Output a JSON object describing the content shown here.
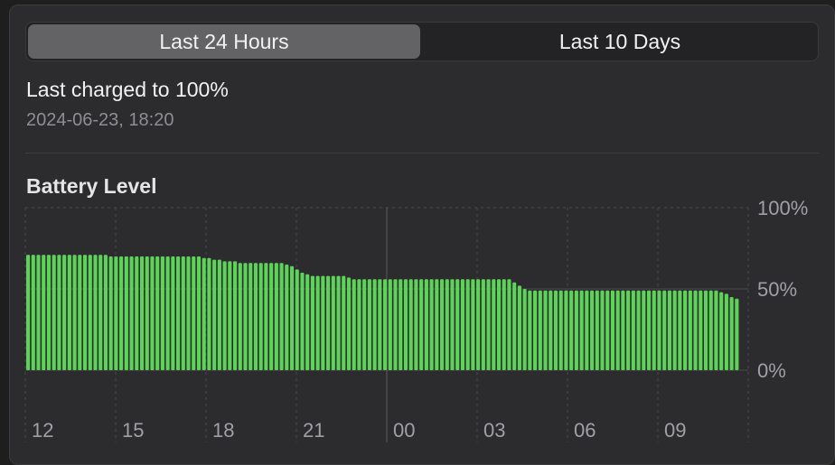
{
  "tabs": [
    {
      "label": "Last 24 Hours",
      "selected": true
    },
    {
      "label": "Last 10 Days",
      "selected": false
    }
  ],
  "charged": {
    "title": "Last charged to 100%",
    "date": "2024-06-23, 18:20"
  },
  "colors": {
    "bar": "#5ed35a",
    "grid": "#4a4a4c",
    "tick": "#a0a0a5",
    "selected_tab": "#636366"
  },
  "chart_data": {
    "type": "bar",
    "title": "Battery Level",
    "ylim": [
      0,
      100
    ],
    "y_ticks": [
      "100%",
      "50%",
      "0%"
    ],
    "y_tick_values": [
      100,
      50,
      0
    ],
    "x_ticks": [
      "12",
      "15",
      "18",
      "21",
      "00",
      "03",
      "06",
      "09"
    ],
    "values": [
      71,
      71,
      71,
      71,
      71,
      71,
      71,
      71,
      71,
      71,
      71,
      71,
      71,
      71,
      71,
      71,
      70,
      70,
      70,
      70,
      70,
      70,
      70,
      70,
      70,
      70,
      70,
      70,
      70,
      70,
      70,
      70,
      70,
      70,
      69,
      69,
      68,
      68,
      67,
      67,
      67,
      66,
      66,
      66,
      66,
      66,
      66,
      66,
      66,
      66,
      65,
      64,
      62,
      60,
      59,
      58,
      58,
      58,
      58,
      58,
      58,
      58,
      57,
      56,
      56,
      56,
      56,
      56,
      56,
      56,
      56,
      56,
      56,
      56,
      56,
      56,
      56,
      56,
      56,
      56,
      56,
      56,
      56,
      56,
      56,
      56,
      56,
      56,
      56,
      56,
      56,
      56,
      56,
      56,
      54,
      52,
      50,
      49,
      49,
      49,
      49,
      49,
      49,
      49,
      49,
      49,
      49,
      49,
      49,
      49,
      49,
      49,
      49,
      49,
      49,
      49,
      49,
      49,
      49,
      49,
      49,
      49,
      49,
      49,
      49,
      49,
      49,
      49,
      49,
      49,
      49,
      49,
      49,
      49,
      48,
      47,
      45,
      44
    ]
  }
}
